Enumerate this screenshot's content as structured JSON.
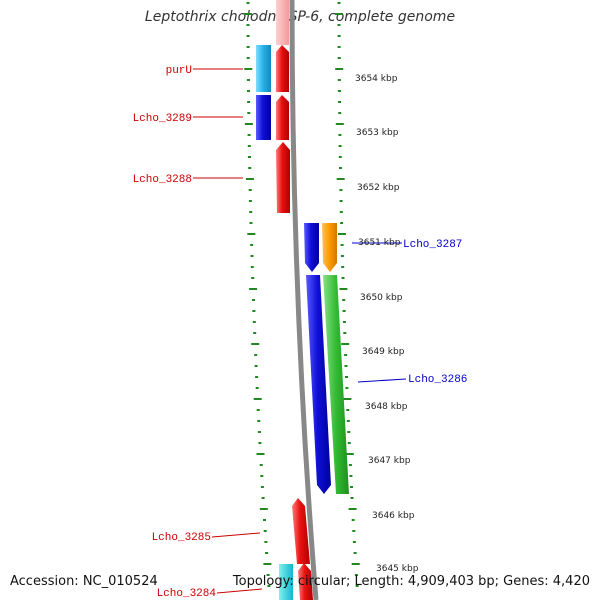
{
  "title": "Leptothrix cholodnii SP-6, complete genome",
  "accession_text": "Accession: NC_010524",
  "topology_text": "Topology: circular; Length: 4,909,403 bp; Genes: 4,420",
  "kbp_labels": [
    "3654 kbp",
    "3653 kbp",
    "3652 kbp",
    "3651 kbp",
    "3650 kbp",
    "3649 kbp",
    "3648 kbp",
    "3647 kbp",
    "3646 kbp",
    "3645 kbp"
  ],
  "left_genes": [
    {
      "label": "purU",
      "color": "#cc0000"
    },
    {
      "label": "Lcho_3289",
      "color": "#cc0000"
    },
    {
      "label": "Lcho_3288",
      "color": "#cc0000"
    },
    {
      "label": "Lcho_3285",
      "color": "#cc0000"
    },
    {
      "label": "Lcho_3284",
      "color": "#cc0000"
    }
  ],
  "right_genes": [
    {
      "label": "Lcho_3287",
      "color": "#0000cc"
    },
    {
      "label": "Lcho_3286",
      "color": "#0000cc"
    }
  ],
  "colors": {
    "forward_gene": "#e81010",
    "reverse_gene_blue": "#1010d8",
    "cyan_feature": "#22b0e8",
    "orange_feature": "#ff9900",
    "green_feature": "#33bb33",
    "backbone": "#888888",
    "tick": "#228822"
  }
}
